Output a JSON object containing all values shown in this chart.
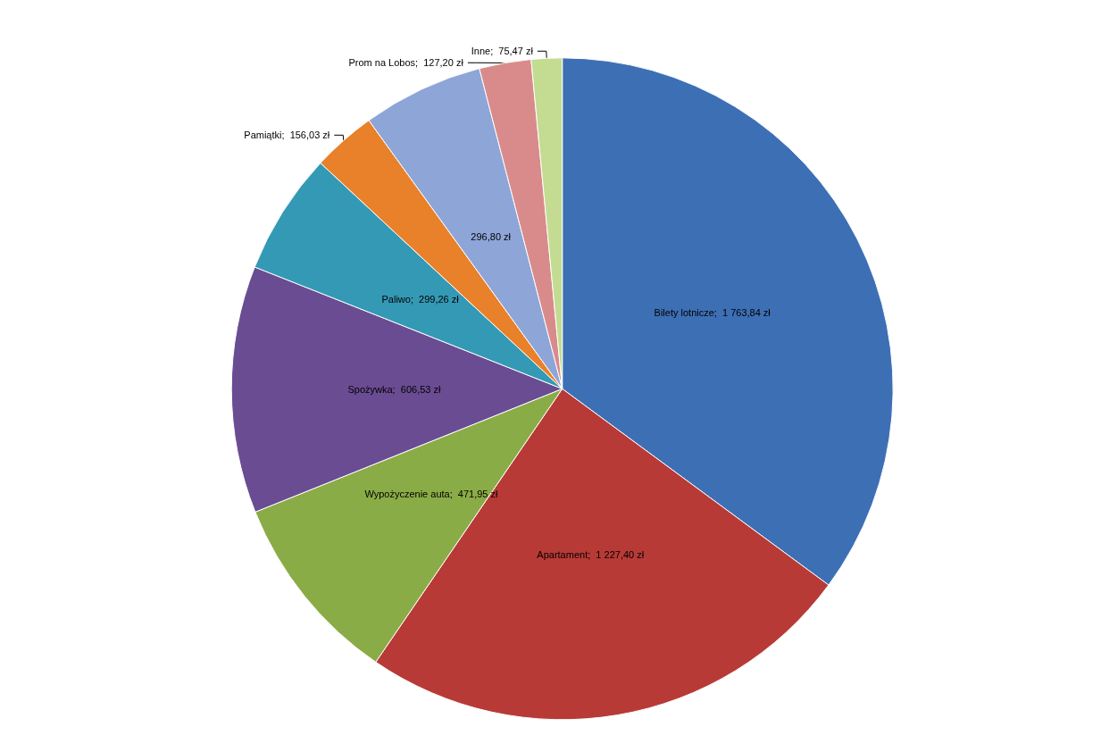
{
  "chart_data": {
    "type": "pie",
    "categories": [
      "Bilety lotnicze",
      "Apartament",
      "Wypożyczenie auta",
      "Spożywka",
      "Paliwo",
      "Pamiątki",
      null,
      "Prom na Lobos",
      "Inne"
    ],
    "values": [
      1763.84,
      1227.4,
      471.95,
      606.53,
      299.26,
      156.03,
      296.8,
      127.2,
      75.47
    ],
    "value_labels": [
      "1 763,84 zł",
      "1 227,40 zł",
      "471,95 zł",
      "606,53 zł",
      "299,26 zł",
      "156,03 zł",
      "296,80 zł",
      "127,20 zł",
      "75,47 zł"
    ],
    "colors": [
      "#3d6fb5",
      "#b83a36",
      "#8aac46",
      "#6a4c93",
      "#3499b5",
      "#e8812a",
      "#8ea5d8",
      "#d98b8b",
      "#c3dc91"
    ],
    "legend": false
  }
}
